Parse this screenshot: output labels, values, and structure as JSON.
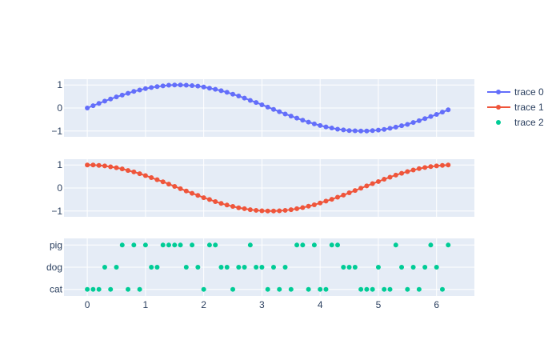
{
  "chart_data": {
    "type": "scatter",
    "subplots": [
      {
        "id": "top",
        "ylim": [
          -1.25,
          1.25
        ],
        "yticks": [
          {
            "value": 1,
            "label": "1"
          },
          {
            "value": 0,
            "label": "0"
          },
          {
            "value": -1,
            "label": "−1"
          }
        ]
      },
      {
        "id": "middle",
        "ylim": [
          -1.25,
          1.25
        ],
        "yticks": [
          {
            "value": 1,
            "label": "1"
          },
          {
            "value": 0,
            "label": "0"
          },
          {
            "value": -1,
            "label": "−1"
          }
        ]
      },
      {
        "id": "bottom",
        "categories": [
          "cat",
          "dog",
          "pig"
        ],
        "yticks": [
          {
            "value": 2,
            "label": "pig"
          },
          {
            "value": 1,
            "label": "dog"
          },
          {
            "value": 0,
            "label": "cat"
          }
        ]
      }
    ],
    "xlim": [
      -0.4,
      6.65
    ],
    "xticks": [
      {
        "value": 0,
        "label": "0"
      },
      {
        "value": 1,
        "label": "1"
      },
      {
        "value": 2,
        "label": "2"
      },
      {
        "value": 3,
        "label": "3"
      },
      {
        "value": 4,
        "label": "4"
      },
      {
        "value": 5,
        "label": "5"
      },
      {
        "value": 6,
        "label": "6"
      }
    ],
    "grid": true,
    "legend_position": "top-right",
    "x": [
      0,
      0.1,
      0.2,
      0.3,
      0.4,
      0.5,
      0.6,
      0.7,
      0.8,
      0.9,
      1,
      1.1,
      1.2,
      1.3,
      1.4,
      1.5,
      1.6,
      1.7,
      1.8,
      1.9,
      2,
      2.1,
      2.2,
      2.3,
      2.4,
      2.5,
      2.6,
      2.7,
      2.8,
      2.9,
      3,
      3.1,
      3.2,
      3.3,
      3.4,
      3.5,
      3.6,
      3.7,
      3.8,
      3.9,
      4,
      4.1,
      4.2,
      4.3,
      4.4,
      4.5,
      4.6,
      4.7,
      4.8,
      4.9,
      5,
      5.1,
      5.2,
      5.3,
      5.4,
      5.5,
      5.6,
      5.7,
      5.8,
      5.9,
      6,
      6.1,
      6.2
    ],
    "series": [
      {
        "name": "trace 0",
        "subplot": "top",
        "mode": "lines+markers",
        "color": "#636efa",
        "y": [
          0,
          0.1,
          0.2,
          0.3,
          0.39,
          0.48,
          0.56,
          0.64,
          0.72,
          0.78,
          0.84,
          0.89,
          0.93,
          0.96,
          0.99,
          1,
          1,
          0.99,
          0.97,
          0.95,
          0.91,
          0.86,
          0.81,
          0.75,
          0.68,
          0.6,
          0.52,
          0.43,
          0.33,
          0.24,
          0.14,
          0.04,
          -0.06,
          -0.16,
          -0.26,
          -0.35,
          -0.44,
          -0.53,
          -0.61,
          -0.69,
          -0.76,
          -0.82,
          -0.87,
          -0.92,
          -0.95,
          -0.98,
          -0.99,
          -1,
          -1,
          -0.98,
          -0.96,
          -0.93,
          -0.88,
          -0.83,
          -0.77,
          -0.71,
          -0.63,
          -0.55,
          -0.46,
          -0.37,
          -0.28,
          -0.18,
          -0.08
        ]
      },
      {
        "name": "trace 1",
        "subplot": "middle",
        "mode": "lines+markers",
        "color": "#ef553b",
        "y": [
          1,
          1,
          0.98,
          0.96,
          0.92,
          0.88,
          0.83,
          0.76,
          0.7,
          0.62,
          0.54,
          0.45,
          0.36,
          0.27,
          0.17,
          0.07,
          -0.03,
          -0.13,
          -0.23,
          -0.32,
          -0.42,
          -0.5,
          -0.59,
          -0.67,
          -0.74,
          -0.8,
          -0.86,
          -0.9,
          -0.94,
          -0.97,
          -0.99,
          -1,
          -1,
          -0.99,
          -0.97,
          -0.94,
          -0.9,
          -0.85,
          -0.79,
          -0.73,
          -0.65,
          -0.57,
          -0.49,
          -0.4,
          -0.31,
          -0.21,
          -0.11,
          -0.01,
          0.09,
          0.19,
          0.28,
          0.38,
          0.47,
          0.56,
          0.64,
          0.71,
          0.78,
          0.84,
          0.89,
          0.93,
          0.96,
          0.98,
          1
        ]
      },
      {
        "name": "trace 2",
        "subplot": "bottom",
        "mode": "markers",
        "color": "#00cc96",
        "y": [
          "cat",
          "cat",
          "cat",
          "dog",
          "cat",
          "dog",
          "pig",
          "cat",
          "pig",
          "cat",
          "pig",
          "dog",
          "dog",
          "pig",
          "pig",
          "pig",
          "pig",
          "dog",
          "pig",
          "dog",
          "cat",
          "pig",
          "pig",
          "dog",
          "dog",
          "cat",
          "dog",
          "dog",
          "pig",
          "dog",
          "dog",
          "cat",
          "dog",
          "cat",
          "dog",
          "cat",
          "pig",
          "pig",
          "cat",
          "pig",
          "cat",
          "cat",
          "pig",
          "pig",
          "dog",
          "dog",
          "dog",
          "cat",
          "cat",
          "cat",
          "dog",
          "cat",
          "cat",
          "pig",
          "dog",
          "cat",
          "dog",
          "cat",
          "dog",
          "pig",
          "dog",
          "cat",
          "pig"
        ]
      }
    ]
  }
}
